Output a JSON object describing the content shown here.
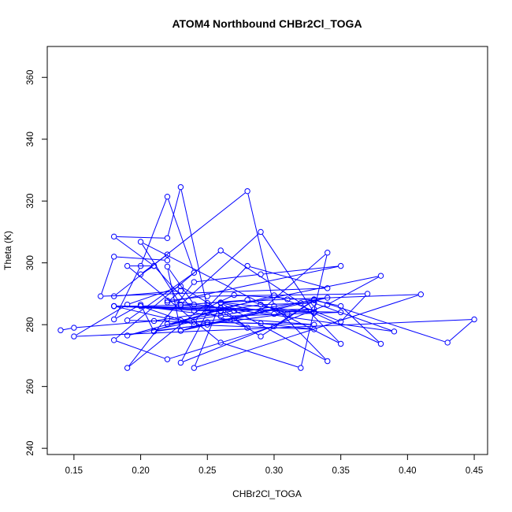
{
  "chart_data": {
    "type": "scatter",
    "title": "ATOM4 Northbound CHBr2Cl_TOGA",
    "xlabel": "CHBr2Cl_TOGA",
    "ylabel": "Theta (K)",
    "xlim": [
      0.13,
      0.46
    ],
    "ylim": [
      238,
      370
    ],
    "xticks": [
      0.15,
      0.2,
      0.25,
      0.3,
      0.35,
      0.4,
      0.45
    ],
    "xtick_labels": [
      "0.15",
      "0.20",
      "0.25",
      "0.30",
      "0.35",
      "0.40",
      "0.45"
    ],
    "yticks": [
      240,
      260,
      280,
      300,
      320,
      340,
      360
    ],
    "ytick_labels": [
      "240",
      "260",
      "280",
      "300",
      "320",
      "340",
      "360"
    ],
    "grid": false,
    "connected": true,
    "marker": "open-circle",
    "color": "#0000ff",
    "series": [
      {
        "x": [
          0.14,
          0.15,
          0.21,
          0.29,
          0.33,
          0.39,
          0.22,
          0.25,
          0.37,
          0.35,
          0.3,
          0.19,
          0.24,
          0.28,
          0.34,
          0.17,
          0.18,
          0.22,
          0.22,
          0.2,
          0.21,
          0.18,
          0.22,
          0.23,
          0.25,
          0.27,
          0.33,
          0.3,
          0.22,
          0.18,
          0.26,
          0.32,
          0.35,
          0.2,
          0.23,
          0.29,
          0.33,
          0.26,
          0.24,
          0.41,
          0.31,
          0.25,
          0.19,
          0.24,
          0.29,
          0.35,
          0.22,
          0.23,
          0.18,
          0.28,
          0.3,
          0.34,
          0.26,
          0.3,
          0.33,
          0.24,
          0.21,
          0.19,
          0.26,
          0.32,
          0.34,
          0.29,
          0.23,
          0.22,
          0.24,
          0.2,
          0.18,
          0.26,
          0.28,
          0.25,
          0.23,
          0.34,
          0.38,
          0.26,
          0.21,
          0.25,
          0.33,
          0.43,
          0.45,
          0.15,
          0.19,
          0.23,
          0.26,
          0.29,
          0.33,
          0.35,
          0.38,
          0.33,
          0.23,
          0.28,
          0.31,
          0.21,
          0.2,
          0.18,
          0.2,
          0.22,
          0.24,
          0.19,
          0.33,
          0.27,
          0.22,
          0.34,
          0.23,
          0.25,
          0.29,
          0.33,
          0.24,
          0.2,
          0.26,
          0.35,
          0.18,
          0.27,
          0.23,
          0.22,
          0.18,
          0.26
        ],
        "y": [
          278.2,
          279.0,
          281.2,
          286.5,
          287.0,
          277.8,
          287.8,
          289.2,
          290.0,
          281.0,
          289.5,
          276.5,
          281.0,
          299.0,
          291.8,
          289.2,
          302.0,
          300.8,
          302.7,
          296.3,
          299.0,
          308.5,
          308.0,
          324.5,
          285.5,
          289.6,
          288.0,
          279.5,
          268.8,
          275.0,
          304.0,
          287.0,
          273.8,
          306.8,
          286.5,
          310.0,
          284.0,
          287.2,
          266.0,
          289.8,
          288.2,
          287.0,
          266.0,
          293.8,
          296.3,
          299.0,
          287.2,
          291.0,
          289.2,
          323.2,
          286.0,
          268.2,
          287.0,
          283.5,
          285.0,
          284.5,
          299.0,
          299.0,
          274.2,
          266.0,
          303.3,
          284.5,
          278.0,
          298.8,
          286.5,
          286.0,
          286.0,
          285.5,
          279.0,
          284.0,
          267.7,
          286.5,
          295.8,
          285.3,
          278.0,
          280.0,
          288.2,
          274.2,
          281.7,
          276.2,
          286.5,
          292.4,
          284.5,
          276.2,
          287.9,
          286.0,
          273.8,
          283.8,
          286.3,
          288.0,
          283.6,
          277.8,
          286.5,
          281.7,
          299.0,
          321.4,
          296.8,
          281.4,
          280.0,
          282.0,
          280.2,
          288.7,
          278.0,
          280.8,
          280.4,
          278.5,
          280.0,
          286.0,
          282.7,
          284.0,
          286.0,
          284.5,
          281.4,
          282.0,
          286.0,
          284.2
        ]
      }
    ]
  }
}
